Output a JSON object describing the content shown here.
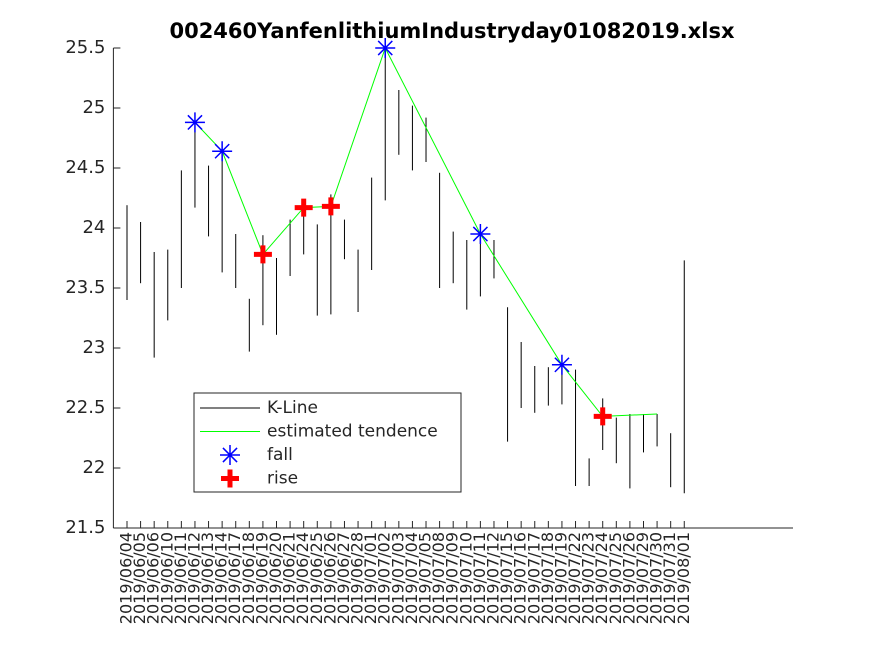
{
  "chart_data": {
    "type": "kline",
    "title": "002460YanfenlithiumIndustryday01082019.xlsx",
    "categories": [
      "2019/06/04",
      "2019/06/05",
      "2019/06/06",
      "2019/06/10",
      "2019/06/11",
      "2019/06/12",
      "2019/06/13",
      "2019/06/14",
      "2019/06/17",
      "2019/06/18",
      "2019/06/19",
      "2019/06/20",
      "2019/06/21",
      "2019/06/24",
      "2019/06/25",
      "2019/06/26",
      "2019/06/27",
      "2019/06/28",
      "2019/07/01",
      "2019/07/02",
      "2019/07/03",
      "2019/07/04",
      "2019/07/05",
      "2019/07/08",
      "2019/07/09",
      "2019/07/10",
      "2019/07/11",
      "2019/07/12",
      "2019/07/15",
      "2019/07/16",
      "2019/07/17",
      "2019/07/18",
      "2019/07/19",
      "2019/07/22",
      "2019/07/23",
      "2019/07/24",
      "2019/07/25",
      "2019/07/26",
      "2019/07/29",
      "2019/07/30",
      "2019/07/31",
      "2019/08/01"
    ],
    "xlim": [
      0,
      50
    ],
    "ylim": [
      21.5,
      25.5
    ],
    "yticks": [
      21.5,
      22,
      22.5,
      23,
      23.5,
      24,
      24.5,
      25,
      25.5
    ],
    "legend": "lower left",
    "series": [
      {
        "name": "K-Line",
        "color": "#000000",
        "high": [
          24.19,
          24.05,
          23.8,
          23.82,
          24.48,
          24.88,
          24.52,
          24.65,
          23.95,
          23.41,
          23.94,
          23.75,
          24.07,
          24.23,
          24.03,
          24.28,
          24.07,
          23.82,
          24.42,
          25.5,
          25.15,
          25.02,
          24.92,
          24.46,
          23.97,
          23.9,
          23.97,
          23.9,
          23.34,
          23.05,
          22.85,
          22.84,
          22.86,
          22.82,
          22.08,
          22.58,
          22.42,
          22.45,
          22.45,
          22.45,
          22.29,
          23.73
        ],
        "low": [
          23.4,
          23.54,
          22.92,
          23.23,
          23.5,
          24.17,
          23.93,
          23.63,
          23.5,
          22.97,
          23.19,
          23.11,
          23.6,
          23.78,
          23.27,
          23.28,
          23.74,
          23.3,
          23.65,
          24.23,
          24.61,
          24.48,
          24.55,
          23.5,
          23.54,
          23.32,
          23.43,
          23.58,
          22.22,
          22.5,
          22.46,
          22.52,
          22.53,
          21.85,
          21.85,
          22.15,
          22.04,
          21.83,
          22.13,
          22.18,
          21.84,
          21.79
        ]
      },
      {
        "name": "estimated tendence",
        "color": "#00ff00",
        "x": [
          6,
          8,
          11,
          14,
          16,
          20,
          27,
          33,
          36,
          40
        ],
        "values": [
          24.88,
          24.64,
          23.78,
          24.17,
          24.18,
          25.5,
          23.95,
          22.86,
          22.43,
          22.45
        ]
      },
      {
        "name": "fall",
        "color": "#0000ff",
        "marker": "*",
        "x": [
          6,
          8,
          20,
          27,
          33
        ],
        "values": [
          24.88,
          24.64,
          25.5,
          23.95,
          22.86
        ]
      },
      {
        "name": "rise",
        "color": "#ff0000",
        "marker": "+",
        "x": [
          11,
          14,
          16,
          36
        ],
        "values": [
          23.78,
          24.17,
          24.18,
          22.43
        ]
      }
    ]
  }
}
